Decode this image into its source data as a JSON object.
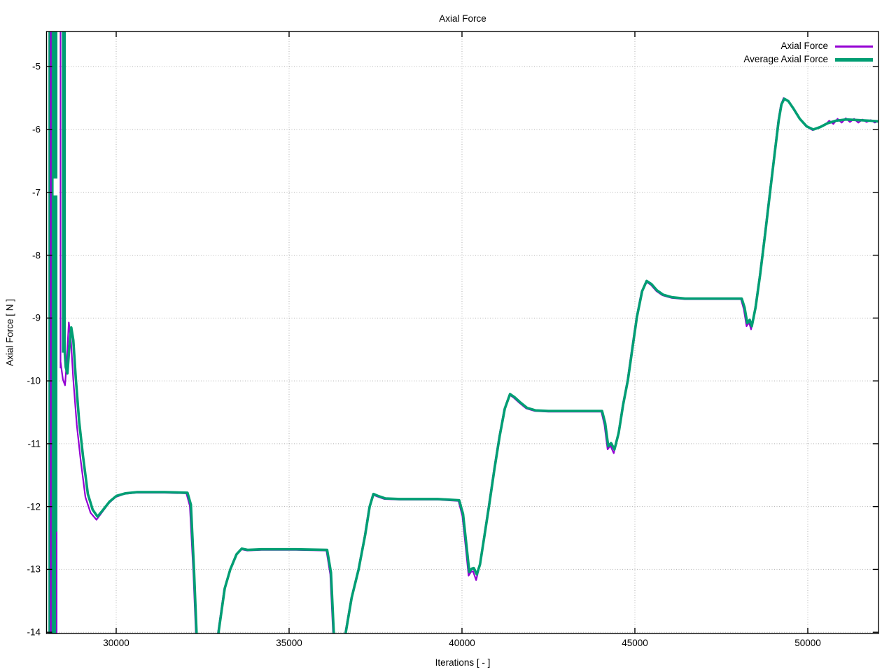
{
  "chart_data": {
    "type": "line",
    "title": "Axial Force",
    "xlabel": "Iterations [ - ]",
    "ylabel": "Axial Force [ N ]",
    "xlim": [
      27986,
      52045
    ],
    "ylim": [
      -14.02,
      -4.44
    ],
    "xticks": [
      30000,
      35000,
      40000,
      45000,
      50000
    ],
    "yticks": [
      -5,
      -6,
      -7,
      -8,
      -9,
      -10,
      -11,
      -12,
      -13,
      -14
    ],
    "grid": "dotted",
    "grid_color": "#b4b4b4",
    "axis_color": "#000000",
    "legend_position": "top-right-inside",
    "startup_oscillation": {
      "note": "off-scale oscillation at run start, rendered as solid bands",
      "band1": {
        "x0": 28040,
        "x1": 28300,
        "purple_line_x": 28110,
        "purple_right_x": 28280,
        "purple_right_y_from": -12.4,
        "white_notch": {
          "x0": 28190,
          "x1": 28300,
          "y0": -6.78,
          "y1": -7.05
        }
      },
      "band2": {
        "x0": 28430,
        "x1": 28545,
        "y_bottom": -9.55,
        "purple_line_x": 28390,
        "purple_y_bottom": -9.8
      }
    },
    "series": [
      {
        "name": "Axial Force",
        "color": "#9400d3",
        "width": 2.2,
        "points": [
          [
            28390,
            -9.7
          ],
          [
            28460,
            -9.98
          ],
          [
            28520,
            -10.07
          ],
          [
            28570,
            -9.7
          ],
          [
            28630,
            -9.07
          ],
          [
            28690,
            -9.35
          ],
          [
            28760,
            -9.98
          ],
          [
            28860,
            -10.7
          ],
          [
            28970,
            -11.25
          ],
          [
            29110,
            -11.85
          ],
          [
            29260,
            -12.1
          ],
          [
            29430,
            -12.21
          ],
          [
            29580,
            -12.1
          ],
          [
            29780,
            -11.95
          ],
          [
            29980,
            -11.85
          ],
          [
            30230,
            -11.8
          ],
          [
            30580,
            -11.78
          ],
          [
            31400,
            -11.78
          ],
          [
            32030,
            -11.79
          ],
          [
            32130,
            -11.99
          ],
          [
            32230,
            -13.05
          ],
          [
            32310,
            -14.1
          ],
          [
            32340,
            -14.45
          ],
          [
            32880,
            -14.45
          ],
          [
            32940,
            -14.02
          ],
          [
            33120,
            -13.32
          ],
          [
            33280,
            -13.02
          ],
          [
            33460,
            -12.77
          ],
          [
            33610,
            -12.68
          ],
          [
            33790,
            -12.7
          ],
          [
            34200,
            -12.69
          ],
          [
            35200,
            -12.69
          ],
          [
            36080,
            -12.7
          ],
          [
            36190,
            -13.08
          ],
          [
            36280,
            -14.1
          ],
          [
            36310,
            -14.45
          ],
          [
            36560,
            -14.45
          ],
          [
            36620,
            -14.02
          ],
          [
            36790,
            -13.47
          ],
          [
            36990,
            -13.02
          ],
          [
            37180,
            -12.47
          ],
          [
            37310,
            -12.02
          ],
          [
            37420,
            -11.81
          ],
          [
            37550,
            -11.84
          ],
          [
            37760,
            -11.88
          ],
          [
            38200,
            -11.89
          ],
          [
            39300,
            -11.89
          ],
          [
            39900,
            -11.91
          ],
          [
            40010,
            -12.15
          ],
          [
            40110,
            -12.66
          ],
          [
            40190,
            -13.1
          ],
          [
            40260,
            -13.04
          ],
          [
            40320,
            -13.03
          ],
          [
            40410,
            -13.17
          ],
          [
            40500,
            -12.96
          ],
          [
            40620,
            -12.53
          ],
          [
            40760,
            -12.02
          ],
          [
            40920,
            -11.42
          ],
          [
            41070,
            -10.9
          ],
          [
            41220,
            -10.45
          ],
          [
            41370,
            -10.22
          ],
          [
            41500,
            -10.27
          ],
          [
            41660,
            -10.35
          ],
          [
            41860,
            -10.44
          ],
          [
            42110,
            -10.48
          ],
          [
            42500,
            -10.49
          ],
          [
            43300,
            -10.49
          ],
          [
            44030,
            -10.49
          ],
          [
            44120,
            -10.7
          ],
          [
            44210,
            -11.09
          ],
          [
            44290,
            -11.03
          ],
          [
            44390,
            -11.15
          ],
          [
            44510,
            -10.86
          ],
          [
            44640,
            -10.4
          ],
          [
            44780,
            -10.0
          ],
          [
            44910,
            -9.5
          ],
          [
            45040,
            -9.0
          ],
          [
            45190,
            -8.58
          ],
          [
            45320,
            -8.42
          ],
          [
            45460,
            -8.47
          ],
          [
            45620,
            -8.57
          ],
          [
            45800,
            -8.64
          ],
          [
            46060,
            -8.68
          ],
          [
            46450,
            -8.7
          ],
          [
            47300,
            -8.7
          ],
          [
            48070,
            -8.7
          ],
          [
            48150,
            -8.86
          ],
          [
            48230,
            -9.13
          ],
          [
            48300,
            -9.07
          ],
          [
            48360,
            -9.18
          ],
          [
            48470,
            -8.86
          ],
          [
            48600,
            -8.35
          ],
          [
            48750,
            -7.68
          ],
          [
            48900,
            -6.98
          ],
          [
            49030,
            -6.38
          ],
          [
            49140,
            -5.87
          ],
          [
            49220,
            -5.61
          ],
          [
            49300,
            -5.5
          ],
          [
            49420,
            -5.54
          ],
          [
            49570,
            -5.66
          ],
          [
            49750,
            -5.82
          ],
          [
            49950,
            -5.95
          ],
          [
            50140,
            -6.01
          ],
          [
            50340,
            -5.97
          ],
          [
            50500,
            -5.93
          ],
          [
            50620,
            -5.86
          ],
          [
            50740,
            -5.91
          ],
          [
            50860,
            -5.83
          ],
          [
            50980,
            -5.89
          ],
          [
            51100,
            -5.82
          ],
          [
            51220,
            -5.88
          ],
          [
            51340,
            -5.83
          ],
          [
            51460,
            -5.89
          ],
          [
            51580,
            -5.84
          ],
          [
            51700,
            -5.88
          ],
          [
            51820,
            -5.85
          ],
          [
            51940,
            -5.89
          ],
          [
            52045,
            -5.86
          ]
        ]
      },
      {
        "name": "Average Axial Force",
        "color": "#009e73",
        "width": 3.6,
        "points": [
          [
            28500,
            -9.45
          ],
          [
            28540,
            -9.78
          ],
          [
            28590,
            -9.88
          ],
          [
            28640,
            -9.5
          ],
          [
            28700,
            -9.15
          ],
          [
            28760,
            -9.35
          ],
          [
            28830,
            -9.95
          ],
          [
            28930,
            -10.65
          ],
          [
            29040,
            -11.2
          ],
          [
            29180,
            -11.8
          ],
          [
            29320,
            -12.05
          ],
          [
            29460,
            -12.16
          ],
          [
            29610,
            -12.06
          ],
          [
            29810,
            -11.92
          ],
          [
            30010,
            -11.83
          ],
          [
            30260,
            -11.79
          ],
          [
            30610,
            -11.77
          ],
          [
            31400,
            -11.77
          ],
          [
            32060,
            -11.78
          ],
          [
            32160,
            -11.97
          ],
          [
            32250,
            -13.0
          ],
          [
            32330,
            -14.1
          ],
          [
            32360,
            -14.45
          ],
          [
            32900,
            -14.45
          ],
          [
            32960,
            -14.0
          ],
          [
            33140,
            -13.3
          ],
          [
            33300,
            -13.0
          ],
          [
            33480,
            -12.76
          ],
          [
            33630,
            -12.67
          ],
          [
            33810,
            -12.69
          ],
          [
            34200,
            -12.68
          ],
          [
            35200,
            -12.68
          ],
          [
            36100,
            -12.69
          ],
          [
            36210,
            -13.05
          ],
          [
            36300,
            -14.1
          ],
          [
            36330,
            -14.45
          ],
          [
            36580,
            -14.45
          ],
          [
            36640,
            -14.0
          ],
          [
            36810,
            -13.45
          ],
          [
            37010,
            -13.0
          ],
          [
            37200,
            -12.45
          ],
          [
            37330,
            -12.0
          ],
          [
            37440,
            -11.8
          ],
          [
            37570,
            -11.83
          ],
          [
            37780,
            -11.87
          ],
          [
            38200,
            -11.88
          ],
          [
            39300,
            -11.88
          ],
          [
            39920,
            -11.9
          ],
          [
            40030,
            -12.12
          ],
          [
            40130,
            -12.62
          ],
          [
            40210,
            -13.04
          ],
          [
            40280,
            -12.99
          ],
          [
            40340,
            -12.98
          ],
          [
            40430,
            -13.08
          ],
          [
            40520,
            -12.92
          ],
          [
            40640,
            -12.5
          ],
          [
            40780,
            -12.0
          ],
          [
            40940,
            -11.4
          ],
          [
            41090,
            -10.88
          ],
          [
            41240,
            -10.44
          ],
          [
            41390,
            -10.21
          ],
          [
            41520,
            -10.26
          ],
          [
            41680,
            -10.34
          ],
          [
            41880,
            -10.43
          ],
          [
            42130,
            -10.47
          ],
          [
            42500,
            -10.48
          ],
          [
            43300,
            -10.48
          ],
          [
            44050,
            -10.48
          ],
          [
            44140,
            -10.67
          ],
          [
            44230,
            -11.04
          ],
          [
            44310,
            -10.99
          ],
          [
            44410,
            -11.09
          ],
          [
            44530,
            -10.83
          ],
          [
            44660,
            -10.38
          ],
          [
            44800,
            -9.98
          ],
          [
            44930,
            -9.48
          ],
          [
            45060,
            -8.98
          ],
          [
            45210,
            -8.57
          ],
          [
            45340,
            -8.41
          ],
          [
            45480,
            -8.46
          ],
          [
            45640,
            -8.56
          ],
          [
            45820,
            -8.63
          ],
          [
            46080,
            -8.67
          ],
          [
            46450,
            -8.69
          ],
          [
            47300,
            -8.69
          ],
          [
            48090,
            -8.69
          ],
          [
            48170,
            -8.83
          ],
          [
            48250,
            -9.08
          ],
          [
            48320,
            -9.03
          ],
          [
            48380,
            -9.13
          ],
          [
            48490,
            -8.83
          ],
          [
            48620,
            -8.32
          ],
          [
            48770,
            -7.65
          ],
          [
            48920,
            -6.95
          ],
          [
            49050,
            -6.35
          ],
          [
            49160,
            -5.85
          ],
          [
            49240,
            -5.6
          ],
          [
            49320,
            -5.51
          ],
          [
            49440,
            -5.55
          ],
          [
            49590,
            -5.67
          ],
          [
            49770,
            -5.83
          ],
          [
            49970,
            -5.95
          ],
          [
            50160,
            -6.0
          ],
          [
            50360,
            -5.96
          ],
          [
            50570,
            -5.9
          ],
          [
            50810,
            -5.86
          ],
          [
            51110,
            -5.84
          ],
          [
            51460,
            -5.85
          ],
          [
            51810,
            -5.86
          ],
          [
            52045,
            -5.87
          ]
        ]
      }
    ]
  }
}
